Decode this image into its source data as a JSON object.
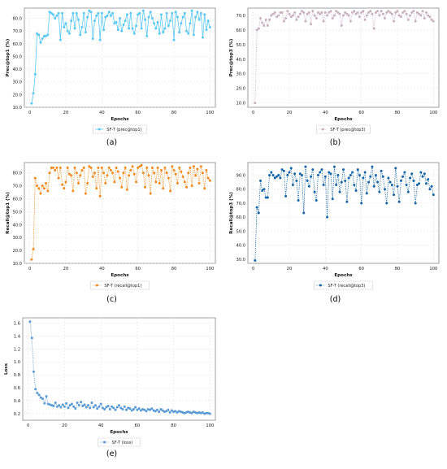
{
  "chart_data": [
    {
      "id": "a",
      "caption": "(a)",
      "type": "line",
      "xlabel": "Epochs",
      "ylabel": "Prec@top1 (%)",
      "xlim": [
        -3,
        103
      ],
      "ylim": [
        10,
        88
      ],
      "xticks": [
        0,
        20,
        40,
        60,
        80,
        100
      ],
      "yticks": [
        10.0,
        20.0,
        30.0,
        40.0,
        50.0,
        60.0,
        70.0,
        80.0
      ],
      "grid": true,
      "legend_position": "below",
      "series": [
        {
          "name": "SF-T (prec@top1)",
          "color": "#5bc8f5",
          "marker": "circle",
          "line_style": "solid",
          "x": [
            1,
            2,
            3,
            4,
            5,
            6,
            7,
            8,
            9,
            10,
            11,
            12,
            13,
            14,
            15,
            16,
            17,
            18,
            19,
            20,
            21,
            22,
            23,
            24,
            25,
            26,
            27,
            28,
            29,
            30,
            31,
            32,
            33,
            34,
            35,
            36,
            37,
            38,
            39,
            40,
            41,
            42,
            43,
            44,
            45,
            46,
            47,
            48,
            49,
            50,
            51,
            52,
            53,
            54,
            55,
            56,
            57,
            58,
            59,
            60,
            61,
            62,
            63,
            64,
            65,
            66,
            67,
            68,
            69,
            70,
            71,
            72,
            73,
            74,
            75,
            76,
            77,
            78,
            79,
            80,
            81,
            82,
            83,
            84,
            85,
            86,
            87,
            88,
            89,
            90,
            91,
            92,
            93,
            94,
            95,
            96,
            97,
            98,
            99,
            100
          ],
          "y": [
            13,
            21,
            36,
            68,
            67,
            61,
            64,
            66,
            66,
            67,
            85,
            84,
            83,
            80,
            82,
            84,
            63,
            84,
            73,
            76,
            70,
            68,
            78,
            84,
            72,
            84,
            79,
            67,
            73,
            84,
            69,
            81,
            86,
            85,
            64,
            78,
            82,
            84,
            63,
            84,
            71,
            81,
            82,
            85,
            82,
            84,
            76,
            77,
            71,
            80,
            70,
            75,
            78,
            83,
            72,
            84,
            72,
            68,
            74,
            83,
            84,
            72,
            86,
            79,
            66,
            81,
            85,
            80,
            76,
            72,
            77,
            68,
            83,
            69,
            72,
            84,
            74,
            78,
            84,
            63,
            85,
            81,
            69,
            76,
            81,
            84,
            70,
            68,
            76,
            86,
            67,
            81,
            85,
            79,
            84,
            65,
            83,
            71,
            78,
            73
          ]
        }
      ]
    },
    {
      "id": "b",
      "caption": "(b)",
      "type": "line",
      "xlabel": "Epochs",
      "ylabel": "Prec@top3 (%)",
      "xlim": [
        -3,
        103
      ],
      "ylim": [
        7,
        75
      ],
      "xticks": [
        0,
        20,
        40,
        60,
        80,
        100
      ],
      "yticks": [
        10.0,
        20.0,
        30.0,
        40.0,
        50.0,
        60.0,
        70.0
      ],
      "grid": true,
      "legend_position": "below",
      "series": [
        {
          "name": "SF-T (prec@top3)",
          "color": "#c9b2bf",
          "marker": "circle",
          "line_style": "dotted",
          "x": [
            1,
            2,
            3,
            4,
            5,
            6,
            7,
            8,
            9,
            10,
            11,
            12,
            13,
            14,
            15,
            16,
            17,
            18,
            19,
            20,
            21,
            22,
            23,
            24,
            25,
            26,
            27,
            28,
            29,
            30,
            31,
            32,
            33,
            34,
            35,
            36,
            37,
            38,
            39,
            40,
            41,
            42,
            43,
            44,
            45,
            46,
            47,
            48,
            49,
            50,
            51,
            52,
            53,
            54,
            55,
            56,
            57,
            58,
            59,
            60,
            61,
            62,
            63,
            64,
            65,
            66,
            67,
            68,
            69,
            70,
            71,
            72,
            73,
            74,
            75,
            76,
            77,
            78,
            79,
            80,
            81,
            82,
            83,
            84,
            85,
            86,
            87,
            88,
            89,
            90,
            91,
            92,
            93,
            94,
            95,
            96,
            97,
            98,
            99,
            100
          ],
          "y": [
            10,
            60,
            61,
            68,
            65,
            63,
            67,
            63,
            67,
            70,
            71,
            72,
            69,
            70,
            72,
            72,
            66,
            68,
            73,
            71,
            69,
            70,
            72,
            67,
            69,
            71,
            73,
            72,
            66,
            71,
            72,
            64,
            73,
            70,
            68,
            72,
            71,
            72,
            66,
            72,
            70,
            72,
            73,
            68,
            70,
            73,
            72,
            71,
            63,
            70,
            72,
            71,
            70,
            66,
            72,
            73,
            71,
            72,
            69,
            72,
            73,
            67,
            70,
            72,
            73,
            71,
            61,
            72,
            73,
            70,
            73,
            71,
            68,
            72,
            73,
            72,
            71,
            66,
            72,
            73,
            70,
            69,
            72,
            73,
            71,
            67,
            70,
            72,
            73,
            66,
            72,
            71,
            70,
            73,
            68,
            72,
            70,
            69,
            67,
            66
          ]
        }
      ]
    },
    {
      "id": "c",
      "caption": "(c)",
      "type": "line",
      "xlabel": "Epochs",
      "ylabel": "Recall@top1 (%)",
      "xlim": [
        -3,
        103
      ],
      "ylim": [
        10,
        88
      ],
      "xticks": [
        0,
        20,
        40,
        60,
        80,
        100
      ],
      "yticks": [
        10.0,
        20.0,
        30.0,
        40.0,
        50.0,
        60.0,
        70.0,
        80.0
      ],
      "grid": true,
      "legend_position": "below",
      "series": [
        {
          "name": "SF-T (recall@top1)",
          "color": "#f28b1f",
          "marker": "circle",
          "line_style": "dotted",
          "x": [
            1,
            2,
            3,
            4,
            5,
            6,
            7,
            8,
            9,
            10,
            11,
            12,
            13,
            14,
            15,
            16,
            17,
            18,
            19,
            20,
            21,
            22,
            23,
            24,
            25,
            26,
            27,
            28,
            29,
            30,
            31,
            32,
            33,
            34,
            35,
            36,
            37,
            38,
            39,
            40,
            41,
            42,
            43,
            44,
            45,
            46,
            47,
            48,
            49,
            50,
            51,
            52,
            53,
            54,
            55,
            56,
            57,
            58,
            59,
            60,
            61,
            62,
            63,
            64,
            65,
            66,
            67,
            68,
            69,
            70,
            71,
            72,
            73,
            74,
            75,
            76,
            77,
            78,
            79,
            80,
            81,
            82,
            83,
            84,
            85,
            86,
            87,
            88,
            89,
            90,
            91,
            92,
            93,
            94,
            95,
            96,
            97,
            98,
            99,
            100
          ],
          "y": [
            13,
            21,
            76,
            70,
            68,
            64,
            70,
            68,
            72,
            66,
            80,
            84,
            84,
            82,
            84,
            76,
            84,
            71,
            68,
            73,
            84,
            79,
            78,
            66,
            84,
            80,
            72,
            78,
            82,
            84,
            64,
            72,
            85,
            84,
            77,
            80,
            68,
            84,
            62,
            84,
            80,
            72,
            78,
            84,
            82,
            80,
            73,
            84,
            81,
            76,
            69,
            80,
            84,
            67,
            78,
            82,
            85,
            79,
            73,
            84,
            85,
            86,
            80,
            69,
            84,
            78,
            64,
            84,
            80,
            73,
            84,
            72,
            82,
            68,
            84,
            80,
            76,
            66,
            85,
            82,
            79,
            72,
            84,
            81,
            77,
            73,
            69,
            80,
            84,
            70,
            85,
            78,
            83,
            72,
            85,
            80,
            68,
            82,
            76,
            74
          ]
        }
      ]
    },
    {
      "id": "d",
      "caption": "(d)",
      "type": "line",
      "xlabel": "Epochs",
      "ylabel": "Recall@top3 (%)",
      "xlim": [
        -3,
        103
      ],
      "ylim": [
        27,
        99
      ],
      "xticks": [
        0,
        20,
        40,
        60,
        80,
        100
      ],
      "yticks": [
        30.0,
        40.0,
        50.0,
        60.0,
        70.0,
        80.0,
        90.0
      ],
      "grid": true,
      "legend_position": "below",
      "series": [
        {
          "name": "SF-T (recall@top3)",
          "color": "#1565a7",
          "marker": "circle",
          "line_style": "dotted",
          "x": [
            1,
            2,
            3,
            4,
            5,
            6,
            7,
            8,
            9,
            10,
            11,
            12,
            13,
            14,
            15,
            16,
            17,
            18,
            19,
            20,
            21,
            22,
            23,
            24,
            25,
            26,
            27,
            28,
            29,
            30,
            31,
            32,
            33,
            34,
            35,
            36,
            37,
            38,
            39,
            40,
            41,
            42,
            43,
            44,
            45,
            46,
            47,
            48,
            49,
            50,
            51,
            52,
            53,
            54,
            55,
            56,
            57,
            58,
            59,
            60,
            61,
            62,
            63,
            64,
            65,
            66,
            67,
            68,
            69,
            70,
            71,
            72,
            73,
            74,
            75,
            76,
            77,
            78,
            79,
            80,
            81,
            82,
            83,
            84,
            85,
            86,
            87,
            88,
            89,
            90,
            91,
            92,
            93,
            94,
            95,
            96,
            97,
            98,
            99,
            100
          ],
          "y": [
            29,
            67,
            63,
            86,
            79,
            80,
            74,
            74,
            90,
            92,
            90,
            88,
            89,
            90,
            88,
            94,
            93,
            75,
            90,
            92,
            95,
            83,
            91,
            86,
            72,
            91,
            90,
            63,
            96,
            86,
            82,
            89,
            94,
            78,
            72,
            90,
            92,
            94,
            83,
            89,
            60,
            92,
            91,
            73,
            96,
            83,
            90,
            78,
            85,
            94,
            86,
            71,
            88,
            90,
            92,
            83,
            79,
            94,
            90,
            70,
            88,
            92,
            77,
            85,
            89,
            96,
            82,
            90,
            85,
            78,
            93,
            89,
            80,
            70,
            88,
            85,
            83,
            76,
            95,
            82,
            71,
            86,
            89,
            92,
            83,
            78,
            88,
            91,
            86,
            70,
            83,
            84,
            92,
            89,
            91,
            84,
            87,
            80,
            82,
            76
          ]
        }
      ]
    },
    {
      "id": "e",
      "caption": "(e)",
      "type": "line",
      "xlabel": "Epochs",
      "ylabel": "Loss",
      "xlim": [
        -3,
        103
      ],
      "ylim": [
        0.1,
        1.68
      ],
      "xticks": [
        0,
        20,
        40,
        60,
        80,
        100
      ],
      "yticks": [
        0.2,
        0.4,
        0.6,
        0.8,
        1.0,
        1.2,
        1.4,
        1.6
      ],
      "grid": true,
      "legend_position": "below",
      "series": [
        {
          "name": "SF-T (loss)",
          "color": "#5b9bd5",
          "marker": "circle",
          "line_style": "dotted",
          "x": [
            1,
            2,
            3,
            4,
            5,
            6,
            7,
            8,
            9,
            10,
            11,
            12,
            13,
            14,
            15,
            16,
            17,
            18,
            19,
            20,
            21,
            22,
            23,
            24,
            25,
            26,
            27,
            28,
            29,
            30,
            31,
            32,
            33,
            34,
            35,
            36,
            37,
            38,
            39,
            40,
            41,
            42,
            43,
            44,
            45,
            46,
            47,
            48,
            49,
            50,
            51,
            52,
            53,
            54,
            55,
            56,
            57,
            58,
            59,
            60,
            61,
            62,
            63,
            64,
            65,
            66,
            67,
            68,
            69,
            70,
            71,
            72,
            73,
            74,
            75,
            76,
            77,
            78,
            79,
            80,
            81,
            82,
            83,
            84,
            85,
            86,
            87,
            88,
            89,
            90,
            91,
            92,
            93,
            94,
            95,
            96,
            97,
            98,
            99,
            100
          ],
          "y": [
            1.62,
            1.37,
            0.85,
            0.58,
            0.52,
            0.49,
            0.45,
            0.43,
            0.36,
            0.47,
            0.35,
            0.34,
            0.33,
            0.32,
            0.37,
            0.31,
            0.33,
            0.3,
            0.34,
            0.31,
            0.36,
            0.29,
            0.33,
            0.35,
            0.31,
            0.28,
            0.37,
            0.33,
            0.38,
            0.32,
            0.34,
            0.3,
            0.33,
            0.29,
            0.37,
            0.3,
            0.33,
            0.28,
            0.31,
            0.35,
            0.29,
            0.27,
            0.3,
            0.32,
            0.27,
            0.31,
            0.29,
            0.26,
            0.3,
            0.33,
            0.29,
            0.27,
            0.31,
            0.26,
            0.29,
            0.28,
            0.25,
            0.27,
            0.3,
            0.26,
            0.28,
            0.25,
            0.27,
            0.26,
            0.24,
            0.27,
            0.26,
            0.28,
            0.25,
            0.24,
            0.26,
            0.23,
            0.27,
            0.25,
            0.23,
            0.24,
            0.26,
            0.22,
            0.25,
            0.23,
            0.24,
            0.22,
            0.24,
            0.23,
            0.22,
            0.21,
            0.22,
            0.23,
            0.22,
            0.21,
            0.23,
            0.22,
            0.21,
            0.22,
            0.21,
            0.22,
            0.2,
            0.21,
            0.21,
            0.2
          ]
        }
      ]
    }
  ]
}
